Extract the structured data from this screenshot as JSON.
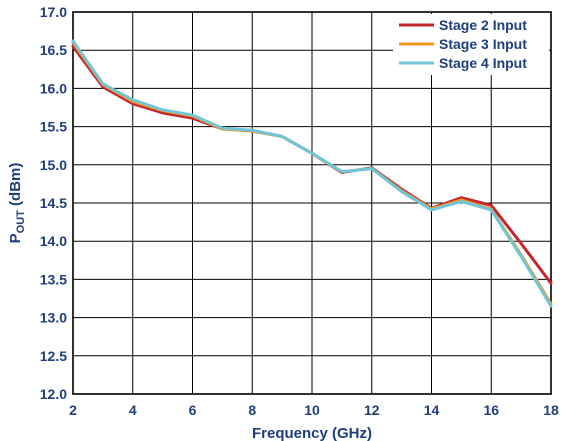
{
  "chart_data": {
    "type": "line",
    "xlabel": "Frequency (GHz)",
    "ylabel": {
      "main": "P",
      "sub": "OUT",
      "unit": " (dBm)"
    },
    "xlim": [
      2,
      18
    ],
    "ylim": [
      12.0,
      17.0
    ],
    "xticks": [
      2,
      4,
      6,
      8,
      10,
      12,
      14,
      16,
      18
    ],
    "xtick_labels": [
      "2",
      "4",
      "6",
      "8",
      "10",
      "12",
      "14",
      "16",
      "18"
    ],
    "yticks": [
      12.0,
      12.5,
      13.0,
      13.5,
      14.0,
      14.5,
      15.0,
      15.5,
      16.0,
      16.5,
      17.0
    ],
    "ytick_labels": [
      "12.0",
      "12.5",
      "13.0",
      "13.5",
      "14.0",
      "14.5",
      "15.0",
      "15.5",
      "16.0",
      "16.5",
      "17.0"
    ],
    "grid": true,
    "legend_position": "top-right",
    "x": [
      2,
      3,
      4,
      5,
      6,
      7,
      8,
      9,
      10,
      11,
      12,
      13,
      14,
      15,
      16,
      17,
      18
    ],
    "series": [
      {
        "name": "Stage 2 Input",
        "color": "#c1272d",
        "values": [
          16.55,
          16.02,
          15.8,
          15.68,
          15.61,
          15.47,
          15.45,
          15.37,
          15.15,
          14.9,
          14.96,
          14.68,
          14.43,
          14.57,
          14.47,
          13.97,
          13.45
        ]
      },
      {
        "name": "Stage 3 Input",
        "color": "#f7941d",
        "values": [
          16.6,
          16.05,
          15.83,
          15.71,
          15.64,
          15.47,
          15.44,
          15.37,
          15.15,
          14.91,
          14.95,
          14.66,
          14.42,
          14.54,
          14.42,
          13.82,
          13.18
        ]
      },
      {
        "name": "Stage 4 Input",
        "color": "#6ec6d8",
        "values": [
          16.62,
          16.06,
          15.85,
          15.72,
          15.65,
          15.48,
          15.45,
          15.37,
          15.15,
          14.91,
          14.95,
          14.65,
          14.41,
          14.52,
          14.41,
          13.8,
          13.15
        ]
      }
    ]
  }
}
